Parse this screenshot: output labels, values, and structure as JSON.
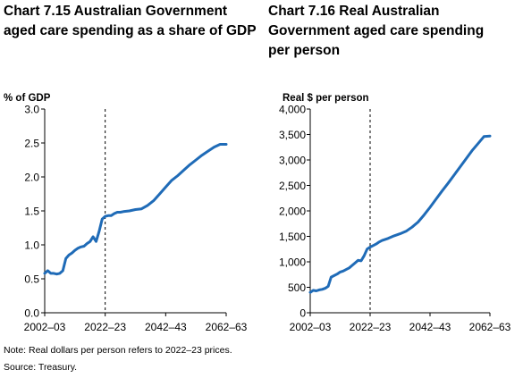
{
  "charts_meta": {
    "note": "Note: Real dollars per person refers to 2022–23 prices.",
    "source": "Source: Treasury.",
    "line_color": "#1f6bb7"
  },
  "chart_data": [
    {
      "type": "line",
      "title": "Chart 7.15  Australian Government\naged care spending as a share of GDP",
      "ylabel": "% of GDP",
      "xlabel": "",
      "ylim": [
        0,
        3.0
      ],
      "yticks": [
        0.0,
        0.5,
        1.0,
        1.5,
        2.0,
        2.5,
        3.0
      ],
      "ytick_labels": [
        "0.0",
        "0.5",
        "1.0",
        "1.5",
        "2.0",
        "2.5",
        "3.0"
      ],
      "xlim": [
        2002,
        2062
      ],
      "xticks": [
        2002,
        2022,
        2042,
        2062
      ],
      "xtick_labels": [
        "2002–03",
        "2022–23",
        "2042–43",
        "2062–63"
      ],
      "reference_line": {
        "x": 2022,
        "style": "dashed"
      },
      "grid": false,
      "series": [
        {
          "x": [
            2002,
            2003,
            2004,
            2005,
            2006,
            2007,
            2008,
            2009,
            2010,
            2011,
            2012,
            2013,
            2014,
            2015,
            2016,
            2017,
            2018,
            2019,
            2020,
            2021,
            2022,
            2023,
            2024,
            2025,
            2026,
            2027,
            2028,
            2030,
            2032,
            2034,
            2036,
            2038,
            2040,
            2042,
            2044,
            2046,
            2048,
            2050,
            2052,
            2054,
            2056,
            2058,
            2060,
            2062
          ],
          "y": [
            0.58,
            0.62,
            0.58,
            0.58,
            0.57,
            0.58,
            0.62,
            0.8,
            0.85,
            0.88,
            0.92,
            0.95,
            0.97,
            0.98,
            1.02,
            1.05,
            1.12,
            1.05,
            1.2,
            1.38,
            1.42,
            1.43,
            1.43,
            1.46,
            1.48,
            1.48,
            1.49,
            1.5,
            1.52,
            1.53,
            1.58,
            1.65,
            1.75,
            1.85,
            1.95,
            2.02,
            2.1,
            2.18,
            2.25,
            2.32,
            2.38,
            2.44,
            2.48,
            2.48
          ]
        }
      ]
    },
    {
      "type": "line",
      "title": "Chart 7.16  Real Australian\nGovernment aged care spending\nper person",
      "ylabel": "Real $ per person",
      "xlabel": "",
      "ylim": [
        0,
        4000
      ],
      "yticks": [
        0,
        500,
        1000,
        1500,
        2000,
        2500,
        3000,
        3500,
        4000
      ],
      "ytick_labels": [
        "0",
        "500",
        "1,000",
        "1,500",
        "2,000",
        "2,500",
        "3,000",
        "3,500",
        "4,000"
      ],
      "xlim": [
        2002,
        2062
      ],
      "xticks": [
        2002,
        2022,
        2042,
        2062
      ],
      "xtick_labels": [
        "2002–03",
        "2022–23",
        "2042–43",
        "2062–63"
      ],
      "reference_line": {
        "x": 2022,
        "style": "dashed"
      },
      "grid": false,
      "series": [
        {
          "x": [
            2002,
            2003,
            2004,
            2005,
            2006,
            2007,
            2008,
            2009,
            2010,
            2011,
            2012,
            2013,
            2014,
            2015,
            2016,
            2017,
            2018,
            2019,
            2020,
            2021,
            2022,
            2023,
            2024,
            2025,
            2026,
            2027,
            2028,
            2030,
            2032,
            2034,
            2036,
            2038,
            2040,
            2042,
            2044,
            2046,
            2048,
            2050,
            2052,
            2054,
            2056,
            2058,
            2060,
            2062
          ],
          "y": [
            400,
            440,
            430,
            450,
            460,
            480,
            520,
            700,
            730,
            760,
            800,
            820,
            850,
            880,
            930,
            980,
            1030,
            1020,
            1120,
            1250,
            1290,
            1320,
            1350,
            1390,
            1420,
            1440,
            1460,
            1510,
            1550,
            1600,
            1680,
            1780,
            1920,
            2070,
            2230,
            2390,
            2540,
            2700,
            2860,
            3020,
            3180,
            3320,
            3460,
            3470
          ]
        }
      ]
    }
  ]
}
